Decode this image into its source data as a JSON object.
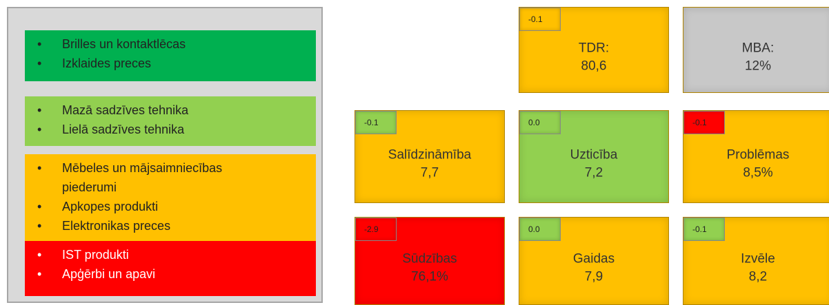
{
  "legend": [
    {
      "color": "#00b050",
      "items": [
        "Brilles un kontaktlēcas",
        "Izklaides preces"
      ]
    },
    {
      "color": "#92d050",
      "items": [
        "Mazā sadzīves tehnika",
        "Lielā sadzīves tehnika"
      ]
    },
    {
      "color": "#ffc000",
      "items": [
        "Mēbeles un mājsaimniecības piederumi",
        "Apkopes produkti",
        "Elektronikas preces"
      ]
    },
    {
      "color": "#ff0000",
      "items": [
        "IST produkti",
        "Apģērbi un apavi"
      ]
    }
  ],
  "tiles": [
    {
      "label": "TDR:",
      "value": "80,6",
      "delta": "-0.1",
      "color": "#ffc000",
      "delta_color": "#ffc000"
    },
    {
      "label": "MBA:",
      "value": "12%",
      "color": "#c8c8c8"
    },
    {
      "label": "Salīdzināmība",
      "value": "7,7",
      "delta": "-0.1",
      "color": "#ffc000",
      "delta_color": "#92d050"
    },
    {
      "label": "Uzticība",
      "value": "7,2",
      "delta": "0.0",
      "color": "#92d050",
      "delta_color": "#92d050"
    },
    {
      "label": "Problēmas",
      "value": "8,5%",
      "delta": "-0.1",
      "color": "#ffc000",
      "delta_color": "#ff0000"
    },
    {
      "label": "Sūdzības",
      "value": "76,1%",
      "delta": "-2.9",
      "color": "#ff0000",
      "delta_color": "#ff0000"
    },
    {
      "label": "Gaidas",
      "value": "7,9",
      "delta": "0.0",
      "color": "#ffc000",
      "delta_color": "#92d050"
    },
    {
      "label": "Izvēle",
      "value": "8,2",
      "delta": "-0.1",
      "color": "#ffc000",
      "delta_color": "#92d050"
    }
  ]
}
